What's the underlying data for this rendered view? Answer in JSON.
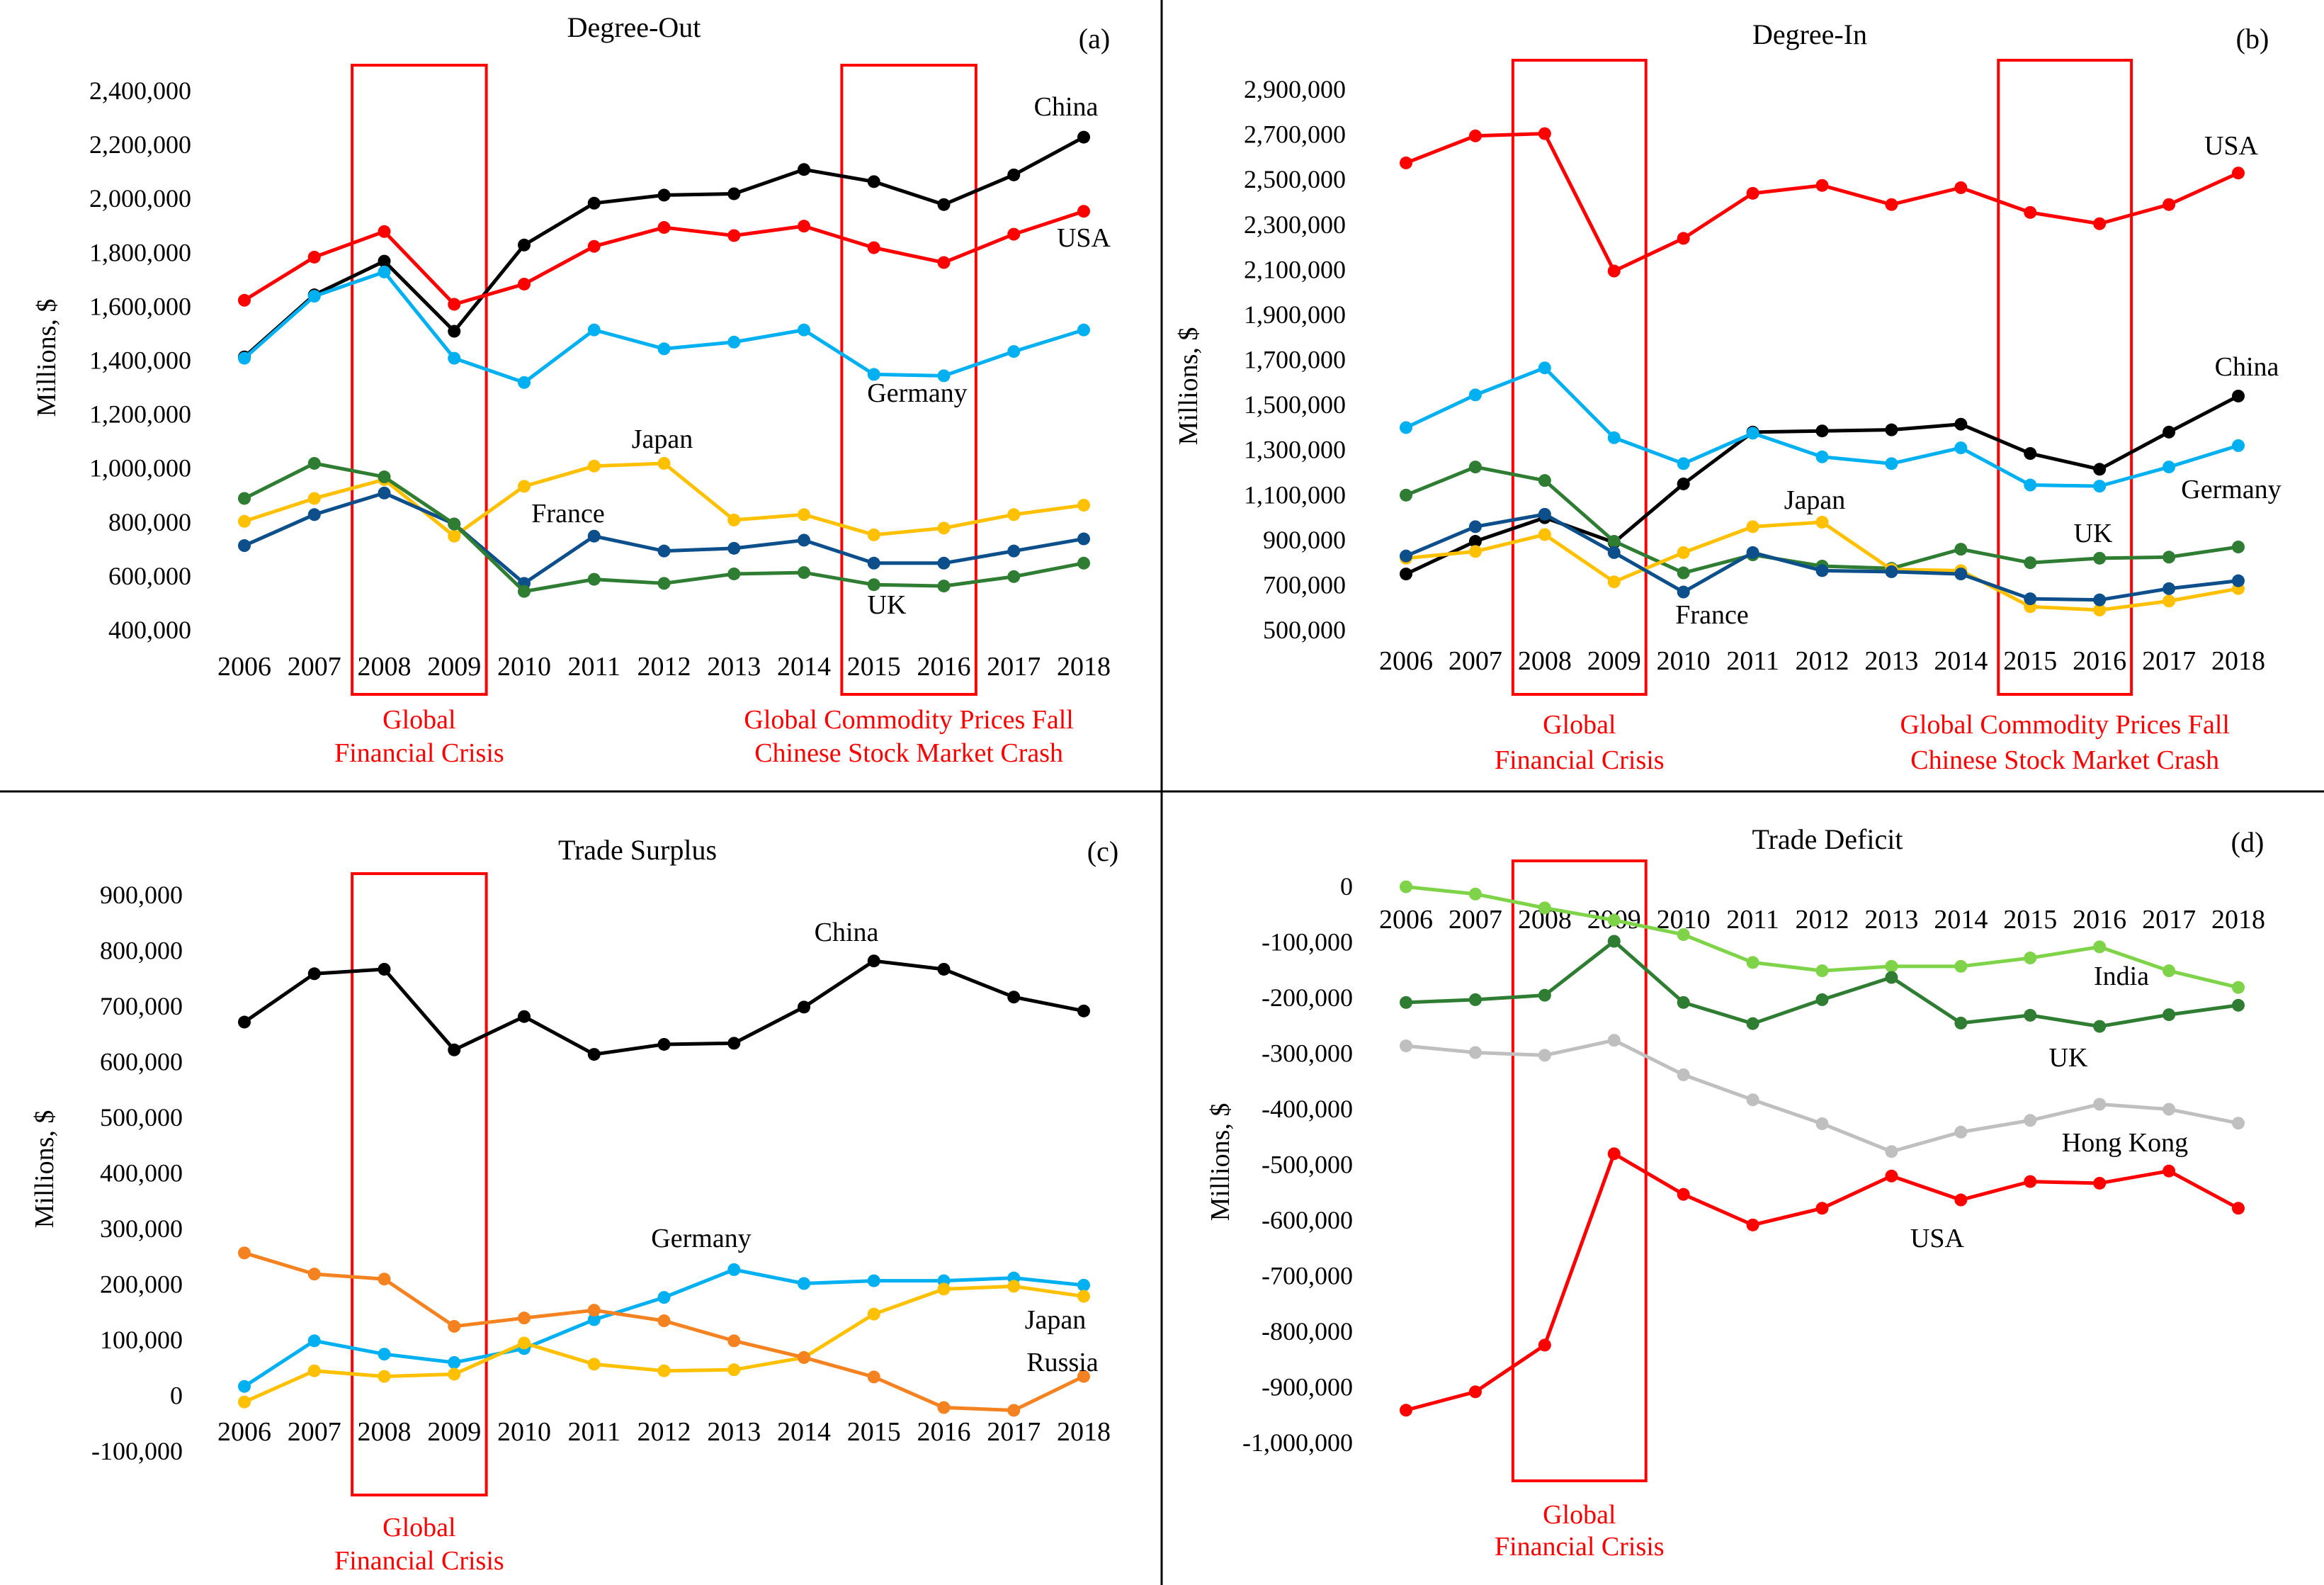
{
  "years": [
    "2006",
    "2007",
    "2008",
    "2009",
    "2010",
    "2011",
    "2012",
    "2013",
    "2014",
    "2015",
    "2016",
    "2017",
    "2018"
  ],
  "colors": {
    "china": "#000000",
    "usa": "#ff0000",
    "germany": "#00b0f0",
    "japan": "#ffc000",
    "france": "#0d4f8b",
    "uk": "#2e7d32",
    "russia": "#f58220",
    "india": "#7ed348",
    "hongkong": "#bfbfbf",
    "annotation": "#ff0000",
    "grid": "#d9d9d9"
  },
  "chart_data": [
    {
      "id": "a",
      "type": "line",
      "panel_letter": "(a)",
      "title": "Degree-Out",
      "ylabel": "Millions, $",
      "xlabel": "",
      "ylim": [
        400000,
        2400000
      ],
      "yticks": [
        400000,
        600000,
        800000,
        1000000,
        1200000,
        1400000,
        1600000,
        1800000,
        2000000,
        2200000,
        2400000
      ],
      "series": [
        {
          "name": "China",
          "color_key": "china",
          "label": "China",
          "values": [
            1410000,
            1640000,
            1765000,
            1505000,
            1825000,
            1980000,
            2010000,
            2015000,
            2105000,
            2060000,
            1975000,
            2085000,
            2225000
          ]
        },
        {
          "name": "USA",
          "color_key": "usa",
          "label": "USA",
          "values": [
            1620000,
            1780000,
            1875000,
            1605000,
            1680000,
            1820000,
            1890000,
            1860000,
            1895000,
            1815000,
            1760000,
            1865000,
            1950000
          ]
        },
        {
          "name": "Germany",
          "color_key": "germany",
          "label": "Germany",
          "values": [
            1405000,
            1635000,
            1725000,
            1405000,
            1315000,
            1510000,
            1440000,
            1465000,
            1510000,
            1345000,
            1340000,
            1430000,
            1510000
          ]
        },
        {
          "name": "Japan",
          "color_key": "japan",
          "label": "Japan",
          "values": [
            800000,
            885000,
            955000,
            745000,
            930000,
            1005000,
            1015000,
            805000,
            825000,
            750000,
            775000,
            825000,
            860000
          ]
        },
        {
          "name": "France",
          "color_key": "france",
          "label": "France",
          "values": [
            710000,
            825000,
            905000,
            790000,
            570000,
            745000,
            690000,
            700000,
            730000,
            645000,
            645000,
            690000,
            735000
          ]
        },
        {
          "name": "UK",
          "color_key": "uk",
          "label": "UK",
          "values": [
            885000,
            1015000,
            965000,
            790000,
            540000,
            585000,
            570000,
            605000,
            610000,
            565000,
            560000,
            595000,
            645000
          ]
        }
      ],
      "highlights": [
        {
          "from": "2008",
          "to": "2009",
          "label_lines": [
            "Global",
            "Financial Crisis"
          ]
        },
        {
          "from": "2015",
          "to": "2016",
          "label_lines": [
            "Global Commodity Prices Fall",
            "Chinese Stock Market Crash"
          ]
        }
      ]
    },
    {
      "id": "b",
      "type": "line",
      "panel_letter": "(b)",
      "title": "Degree-In",
      "ylabel": "Millions, $",
      "xlabel": "",
      "ylim": [
        500000,
        2900000
      ],
      "yticks": [
        500000,
        700000,
        900000,
        1100000,
        1300000,
        1500000,
        1700000,
        1900000,
        2100000,
        2300000,
        2500000,
        2700000,
        2900000
      ],
      "series": [
        {
          "name": "USA",
          "color_key": "usa",
          "label": "USA",
          "values": [
            2570000,
            2690000,
            2700000,
            2090000,
            2235000,
            2435000,
            2470000,
            2385000,
            2460000,
            2350000,
            2300000,
            2385000,
            2525000
          ]
        },
        {
          "name": "China",
          "color_key": "china",
          "label": "China",
          "values": [
            745000,
            890000,
            995000,
            885000,
            1145000,
            1375000,
            1380000,
            1385000,
            1410000,
            1280000,
            1210000,
            1375000,
            1535000
          ]
        },
        {
          "name": "Germany",
          "color_key": "germany",
          "label": "Germany",
          "values": [
            1395000,
            1540000,
            1660000,
            1350000,
            1235000,
            1370000,
            1265000,
            1235000,
            1305000,
            1140000,
            1135000,
            1220000,
            1315000
          ]
        },
        {
          "name": "UK",
          "color_key": "uk",
          "label": "UK",
          "values": [
            1095000,
            1220000,
            1160000,
            890000,
            750000,
            830000,
            780000,
            770000,
            855000,
            795000,
            815000,
            820000,
            865000
          ]
        },
        {
          "name": "Japan",
          "color_key": "japan",
          "label": "Japan",
          "values": [
            815000,
            845000,
            920000,
            710000,
            840000,
            955000,
            975000,
            765000,
            760000,
            600000,
            585000,
            625000,
            680000
          ]
        },
        {
          "name": "France",
          "color_key": "france",
          "label": "France",
          "values": [
            825000,
            955000,
            1010000,
            840000,
            665000,
            840000,
            760000,
            755000,
            745000,
            635000,
            630000,
            680000,
            715000
          ]
        }
      ],
      "highlights": [
        {
          "from": "2008",
          "to": "2009",
          "label_lines": [
            "Global",
            "Financial Crisis"
          ]
        },
        {
          "from": "2015",
          "to": "2016",
          "label_lines": [
            "Global Commodity Prices Fall",
            "Chinese Stock Market Crash"
          ]
        }
      ]
    },
    {
      "id": "c",
      "type": "line",
      "panel_letter": "(c)",
      "title": "Trade Surplus",
      "ylabel": "Millions, $",
      "xlabel": "",
      "ylim": [
        -100000,
        900000
      ],
      "yticks": [
        -100000,
        0,
        100000,
        200000,
        300000,
        400000,
        500000,
        600000,
        700000,
        800000,
        900000
      ],
      "series": [
        {
          "name": "China",
          "color_key": "china",
          "label": "China",
          "values": [
            670000,
            757000,
            765000,
            620000,
            680000,
            612000,
            630000,
            632000,
            697000,
            780000,
            765000,
            715000,
            690000
          ]
        },
        {
          "name": "Germany",
          "color_key": "germany",
          "label": "Germany",
          "values": [
            15000,
            97000,
            73000,
            58000,
            83000,
            135000,
            175000,
            225000,
            200000,
            205000,
            205000,
            210000,
            197000
          ]
        },
        {
          "name": "Japan",
          "color_key": "japan",
          "label": "Japan",
          "values": [
            -13000,
            43000,
            33000,
            37000,
            93000,
            55000,
            43000,
            45000,
            67000,
            145000,
            190000,
            195000,
            177000
          ]
        },
        {
          "name": "Russia",
          "color_key": "russia",
          "label": "Russia",
          "values": [
            255000,
            217000,
            208000,
            123000,
            138000,
            152000,
            133000,
            97000,
            67000,
            32000,
            -23000,
            -28000,
            33000
          ]
        }
      ],
      "highlights": [
        {
          "from": "2008",
          "to": "2009",
          "label_lines": [
            "Global",
            "Financial Crisis"
          ]
        }
      ]
    },
    {
      "id": "d",
      "type": "line",
      "panel_letter": "(d)",
      "title": "Trade Deficit",
      "ylabel": "Millions, $",
      "xlabel": "",
      "ylim": [
        -1000000,
        0
      ],
      "yticks": [
        -1000000,
        -900000,
        -800000,
        -700000,
        -600000,
        -500000,
        -400000,
        -300000,
        -200000,
        -100000,
        0
      ],
      "series": [
        {
          "name": "India",
          "color_key": "india",
          "label": "India",
          "values": [
            -2000,
            -15000,
            -40000,
            -62000,
            -88000,
            -138000,
            -153000,
            -145000,
            -145000,
            -130000,
            -110000,
            -153000,
            -183000
          ]
        },
        {
          "name": "UK",
          "color_key": "uk",
          "label": "UK",
          "values": [
            -210000,
            -205000,
            -197000,
            -100000,
            -210000,
            -248000,
            -205000,
            -165000,
            -247000,
            -233000,
            -253000,
            -232000,
            -215000
          ]
        },
        {
          "name": "Hong Kong",
          "color_key": "hongkong",
          "label": "Hong Kong",
          "values": [
            -288000,
            -300000,
            -305000,
            -278000,
            -340000,
            -385000,
            -428000,
            -478000,
            -443000,
            -422000,
            -393000,
            -402000,
            -427000
          ]
        },
        {
          "name": "USA",
          "color_key": "usa",
          "label": "USA",
          "values": [
            -943000,
            -910000,
            -826000,
            -482000,
            -555000,
            -610000,
            -580000,
            -522000,
            -565000,
            -532000,
            -535000,
            -513000,
            -580000
          ]
        }
      ],
      "highlights": [
        {
          "from": "2008",
          "to": "2009",
          "label_lines": [
            "Global",
            "Financial Crisis"
          ]
        }
      ]
    }
  ]
}
